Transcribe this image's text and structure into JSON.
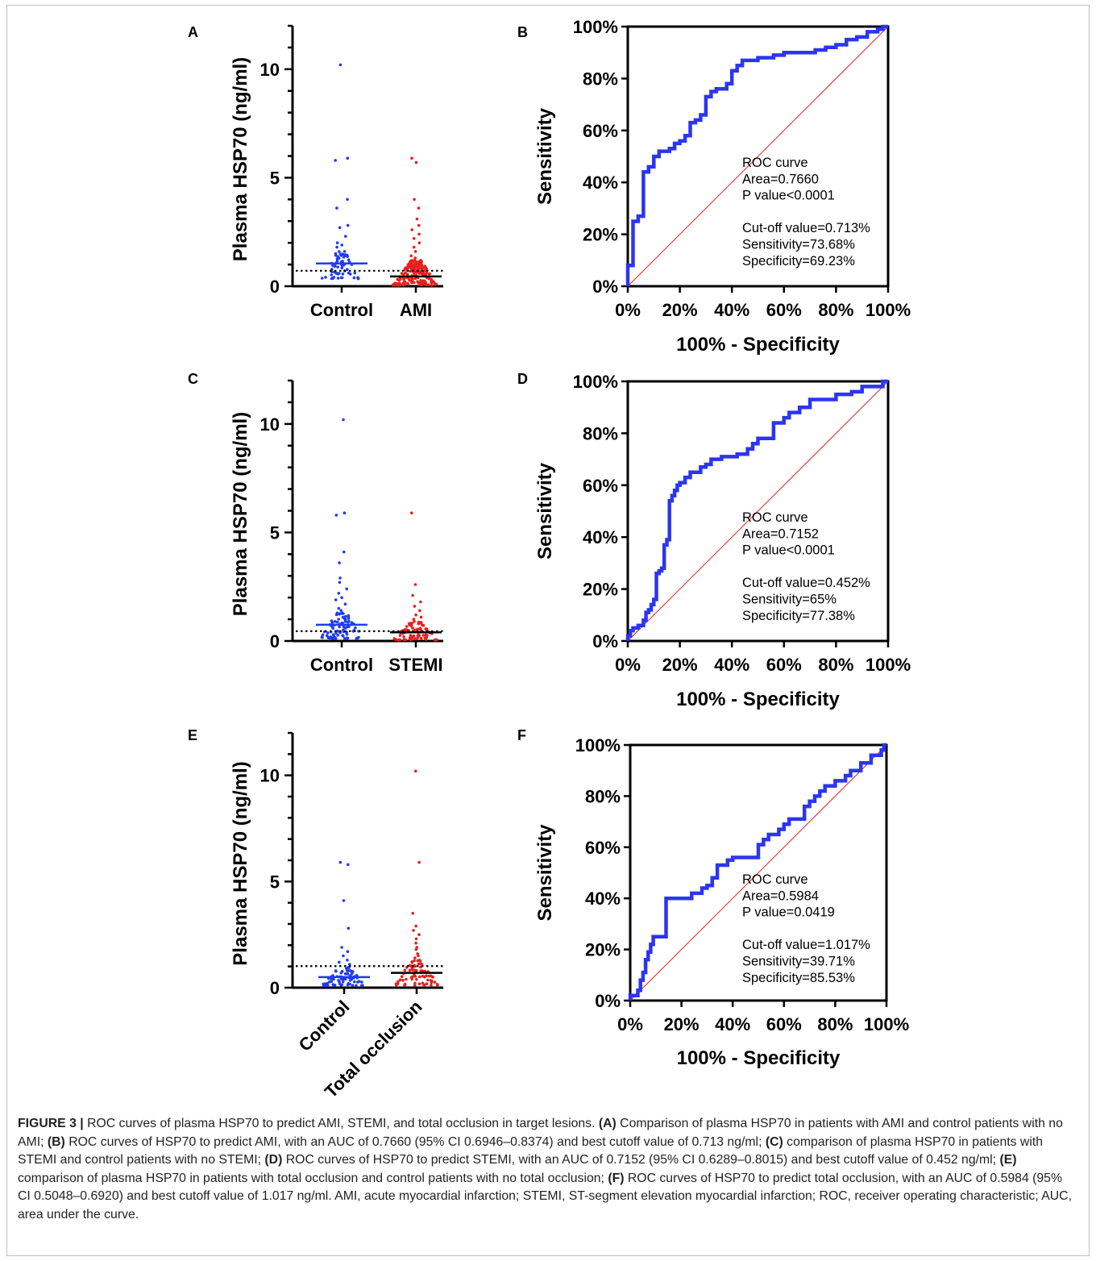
{
  "figure_label": "FIGURE 3 |",
  "caption": [
    {
      "t": "ROC curves of plasma HSP70 to predict AMI, STEMI, and total occlusion in target lesions. "
    },
    {
      "t": "(A)",
      "b": true
    },
    {
      "t": " Comparison of plasma HSP70 in patients with AMI and control patients with no AMI; "
    },
    {
      "t": "(B)",
      "b": true
    },
    {
      "t": " ROC curves of HSP70 to predict AMI, with an AUC of 0.7660 (95% CI 0.6946–0.8374) and best cutoff value of 0.713 ng/ml; "
    },
    {
      "t": "(C)",
      "b": true
    },
    {
      "t": " comparison of plasma HSP70 in patients with STEMI and control patients with no STEMI; "
    },
    {
      "t": "(D)",
      "b": true
    },
    {
      "t": " ROC curves of HSP70 to predict STEMI, with an AUC of 0.7152 (95% CI 0.6289–0.8015) and best cutoff value of 0.452 ng/ml; "
    },
    {
      "t": "(E)",
      "b": true
    },
    {
      "t": " comparison of plasma HSP70 in patients with total occlusion and control patients with no total occlusion; "
    },
    {
      "t": "(F)",
      "b": true
    },
    {
      "t": " ROC curves of HSP70 to predict total occlusion, with an AUC of 0.5984 (95% CI 0.5048–0.6920) and best cutoff value of 1.017 ng/ml. AMI, acute myocardial infarction; STEMI, ST-segment elevation myocardial infarction; ROC, receiver operating characteristic; AUC, area under the curve."
    }
  ],
  "colors": {
    "control": "#1f3cf2",
    "case": "#e8201c",
    "roc": "#2b35f0",
    "diag": "#e8201c",
    "axis": "#000000"
  },
  "chart_data": [
    {
      "panel": "A",
      "type": "scatter",
      "ylabel": "Plasma HSP70 (ng/ml)",
      "yticks": [
        0,
        5,
        10
      ],
      "ylim": [
        0,
        12
      ],
      "groups": [
        {
          "label": "Control",
          "color_key": "control",
          "median": 1.05,
          "highlights": [
            10.2,
            5.9,
            5.8,
            4.0,
            3.6,
            2.8,
            2.7,
            2.3,
            2.0,
            1.9,
            1.8,
            1.6,
            1.5,
            1.4
          ],
          "n": 60,
          "spread": [
            0.35,
            1.6
          ]
        },
        {
          "label": "AMI",
          "color_key": "case",
          "median": 0.45,
          "highlights": [
            5.9,
            5.7,
            4.0,
            3.6,
            3.1,
            2.8,
            2.6,
            2.4,
            2.2,
            2.0,
            1.8,
            1.6,
            1.4,
            1.3
          ],
          "n": 180,
          "spread": [
            0.05,
            1.2
          ]
        }
      ],
      "cutoff": 0.713
    },
    {
      "panel": "B",
      "type": "line",
      "xlabel": "100% - Specificity",
      "ylabel": "Sensitivity",
      "ticks": [
        "0%",
        "20%",
        "40%",
        "60%",
        "80%",
        "100%"
      ],
      "roc": [
        [
          0,
          0
        ],
        [
          0,
          8
        ],
        [
          2,
          8
        ],
        [
          2,
          25
        ],
        [
          4,
          25
        ],
        [
          4,
          27
        ],
        [
          6,
          27
        ],
        [
          6,
          44
        ],
        [
          8,
          44
        ],
        [
          8,
          46
        ],
        [
          10,
          46
        ],
        [
          10,
          50
        ],
        [
          12,
          50
        ],
        [
          12,
          52
        ],
        [
          16,
          52
        ],
        [
          16,
          53
        ],
        [
          18,
          53
        ],
        [
          18,
          55
        ],
        [
          20,
          55
        ],
        [
          20,
          56
        ],
        [
          22,
          56
        ],
        [
          22,
          58
        ],
        [
          24,
          58
        ],
        [
          24,
          63
        ],
        [
          26,
          63
        ],
        [
          26,
          64
        ],
        [
          28,
          64
        ],
        [
          28,
          66
        ],
        [
          30,
          66
        ],
        [
          30,
          73
        ],
        [
          32,
          73
        ],
        [
          32,
          75
        ],
        [
          34,
          75
        ],
        [
          34,
          76
        ],
        [
          38,
          76
        ],
        [
          38,
          78
        ],
        [
          40,
          78
        ],
        [
          40,
          83
        ],
        [
          42,
          83
        ],
        [
          42,
          85
        ],
        [
          44,
          85
        ],
        [
          44,
          87
        ],
        [
          50,
          87
        ],
        [
          50,
          88
        ],
        [
          56,
          88
        ],
        [
          56,
          89
        ],
        [
          60,
          89
        ],
        [
          60,
          90
        ],
        [
          72,
          90
        ],
        [
          72,
          91
        ],
        [
          76,
          91
        ],
        [
          76,
          92
        ],
        [
          80,
          92
        ],
        [
          80,
          93
        ],
        [
          84,
          93
        ],
        [
          84,
          95
        ],
        [
          88,
          95
        ],
        [
          88,
          96
        ],
        [
          92,
          96
        ],
        [
          92,
          98
        ],
        [
          96,
          98
        ],
        [
          96,
          99
        ],
        [
          98,
          99
        ],
        [
          98,
          100
        ],
        [
          100,
          100
        ]
      ],
      "annotation": [
        "ROC curve",
        "Area=0.7660",
        "P value<0.0001",
        "",
        "Cut-off value=0.713%",
        "Sensitivity=73.68%",
        "Specificity=69.23%"
      ]
    },
    {
      "panel": "C",
      "type": "scatter",
      "ylabel": "Plasma HSP70 (ng/ml)",
      "yticks": [
        0,
        5,
        10
      ],
      "ylim": [
        0,
        12
      ],
      "groups": [
        {
          "label": "Control",
          "color_key": "control",
          "median": 0.75,
          "highlights": [
            10.2,
            5.9,
            5.8,
            4.1,
            3.6,
            2.9,
            2.7,
            2.4,
            2.2,
            2.0,
            1.9,
            1.7,
            1.5,
            1.4,
            1.3
          ],
          "n": 85,
          "spread": [
            0.1,
            1.3
          ]
        },
        {
          "label": "STEMI",
          "color_key": "case",
          "median": 0.4,
          "highlights": [
            5.9,
            2.6,
            2.1,
            1.8,
            1.6,
            1.4,
            1.2,
            1.1,
            1.0,
            0.9
          ],
          "n": 70,
          "spread": [
            0.05,
            0.9
          ]
        }
      ],
      "cutoff": 0.452
    },
    {
      "panel": "D",
      "type": "line",
      "xlabel": "100% - Specificity",
      "ylabel": "Sensitivity",
      "ticks": [
        "0%",
        "20%",
        "40%",
        "60%",
        "80%",
        "100%"
      ],
      "roc": [
        [
          0,
          0
        ],
        [
          0,
          2
        ],
        [
          1,
          2
        ],
        [
          1,
          4
        ],
        [
          2,
          4
        ],
        [
          2,
          5
        ],
        [
          4,
          5
        ],
        [
          4,
          6
        ],
        [
          6,
          6
        ],
        [
          6,
          8
        ],
        [
          7,
          8
        ],
        [
          7,
          11
        ],
        [
          8,
          11
        ],
        [
          8,
          12
        ],
        [
          9,
          12
        ],
        [
          9,
          14
        ],
        [
          10,
          14
        ],
        [
          10,
          16
        ],
        [
          11,
          16
        ],
        [
          11,
          26
        ],
        [
          12,
          26
        ],
        [
          12,
          27
        ],
        [
          13,
          27
        ],
        [
          13,
          28
        ],
        [
          14,
          28
        ],
        [
          14,
          37
        ],
        [
          15,
          37
        ],
        [
          15,
          39
        ],
        [
          16,
          39
        ],
        [
          16,
          54
        ],
        [
          17,
          54
        ],
        [
          17,
          56
        ],
        [
          18,
          56
        ],
        [
          18,
          58
        ],
        [
          19,
          58
        ],
        [
          19,
          60
        ],
        [
          20,
          60
        ],
        [
          20,
          61
        ],
        [
          22,
          61
        ],
        [
          22,
          63
        ],
        [
          24,
          63
        ],
        [
          24,
          65
        ],
        [
          28,
          65
        ],
        [
          28,
          67
        ],
        [
          30,
          67
        ],
        [
          30,
          68
        ],
        [
          32,
          68
        ],
        [
          32,
          70
        ],
        [
          36,
          70
        ],
        [
          36,
          71
        ],
        [
          42,
          71
        ],
        [
          42,
          72
        ],
        [
          46,
          72
        ],
        [
          46,
          74
        ],
        [
          48,
          74
        ],
        [
          48,
          76
        ],
        [
          50,
          76
        ],
        [
          50,
          78
        ],
        [
          56,
          78
        ],
        [
          56,
          84
        ],
        [
          60,
          84
        ],
        [
          60,
          86
        ],
        [
          62,
          86
        ],
        [
          62,
          88
        ],
        [
          66,
          88
        ],
        [
          66,
          90
        ],
        [
          70,
          90
        ],
        [
          70,
          93
        ],
        [
          80,
          93
        ],
        [
          80,
          95
        ],
        [
          86,
          95
        ],
        [
          86,
          96
        ],
        [
          90,
          96
        ],
        [
          90,
          98
        ],
        [
          98,
          98
        ],
        [
          98,
          100
        ],
        [
          100,
          100
        ]
      ],
      "annotation": [
        "ROC curve",
        "Area=0.7152",
        "P value<0.0001",
        "",
        "Cut-off value=0.452%",
        "Sensitivity=65%",
        "Specificity=77.38%"
      ]
    },
    {
      "panel": "E",
      "type": "scatter",
      "ylabel": "Plasma HSP70 (ng/ml)",
      "yticks": [
        0,
        5,
        10
      ],
      "ylim": [
        0,
        12
      ],
      "groups": [
        {
          "label": "Control",
          "color_key": "control",
          "median": 0.5,
          "highlights": [
            5.9,
            5.8,
            4.1,
            2.8,
            1.9,
            1.7,
            1.5,
            1.3,
            1.2,
            1.1
          ],
          "n": 75,
          "spread": [
            0.1,
            1.0
          ]
        },
        {
          "label": "Total occlusion",
          "color_key": "case",
          "median": 0.7,
          "highlights": [
            10.2,
            5.9,
            3.5,
            2.9,
            2.7,
            2.5,
            2.3,
            2.1,
            1.9,
            1.8,
            1.6,
            1.5,
            1.4,
            1.3
          ],
          "n": 70,
          "spread": [
            0.1,
            1.3
          ]
        }
      ],
      "cutoff": 1.017
    },
    {
      "panel": "F",
      "type": "line",
      "xlabel": "100% - Specificity",
      "ylabel": "Sensitivity",
      "ticks": [
        "0%",
        "20%",
        "40%",
        "60%",
        "80%",
        "100%"
      ],
      "roc": [
        [
          0,
          0
        ],
        [
          0,
          2
        ],
        [
          3,
          2
        ],
        [
          3,
          4
        ],
        [
          4,
          4
        ],
        [
          4,
          8
        ],
        [
          5,
          8
        ],
        [
          5,
          11
        ],
        [
          6,
          11
        ],
        [
          6,
          16
        ],
        [
          7,
          16
        ],
        [
          7,
          19
        ],
        [
          8,
          19
        ],
        [
          8,
          22
        ],
        [
          9,
          22
        ],
        [
          9,
          25
        ],
        [
          14,
          25
        ],
        [
          14,
          40
        ],
        [
          24,
          40
        ],
        [
          24,
          42
        ],
        [
          28,
          42
        ],
        [
          28,
          44
        ],
        [
          30,
          44
        ],
        [
          30,
          45
        ],
        [
          32,
          45
        ],
        [
          32,
          48
        ],
        [
          34,
          48
        ],
        [
          34,
          53
        ],
        [
          38,
          53
        ],
        [
          38,
          55
        ],
        [
          40,
          55
        ],
        [
          40,
          56
        ],
        [
          50,
          56
        ],
        [
          50,
          61
        ],
        [
          52,
          61
        ],
        [
          52,
          63
        ],
        [
          54,
          63
        ],
        [
          54,
          65
        ],
        [
          58,
          65
        ],
        [
          58,
          67
        ],
        [
          60,
          67
        ],
        [
          60,
          69
        ],
        [
          62,
          69
        ],
        [
          62,
          71
        ],
        [
          68,
          71
        ],
        [
          68,
          76
        ],
        [
          70,
          76
        ],
        [
          70,
          78
        ],
        [
          72,
          78
        ],
        [
          72,
          80
        ],
        [
          74,
          80
        ],
        [
          74,
          82
        ],
        [
          76,
          82
        ],
        [
          76,
          84
        ],
        [
          80,
          84
        ],
        [
          80,
          86
        ],
        [
          84,
          86
        ],
        [
          84,
          88
        ],
        [
          86,
          88
        ],
        [
          86,
          90
        ],
        [
          90,
          90
        ],
        [
          90,
          93
        ],
        [
          94,
          93
        ],
        [
          94,
          96
        ],
        [
          98,
          96
        ],
        [
          98,
          98
        ],
        [
          99,
          98
        ],
        [
          99,
          100
        ],
        [
          100,
          100
        ]
      ],
      "annotation": [
        "ROC curve",
        "Area=0.5984",
        "P value=0.0419",
        "",
        "Cut-off value=1.017%",
        "Sensitivity=39.71%",
        "Specificity=85.53%"
      ]
    }
  ]
}
